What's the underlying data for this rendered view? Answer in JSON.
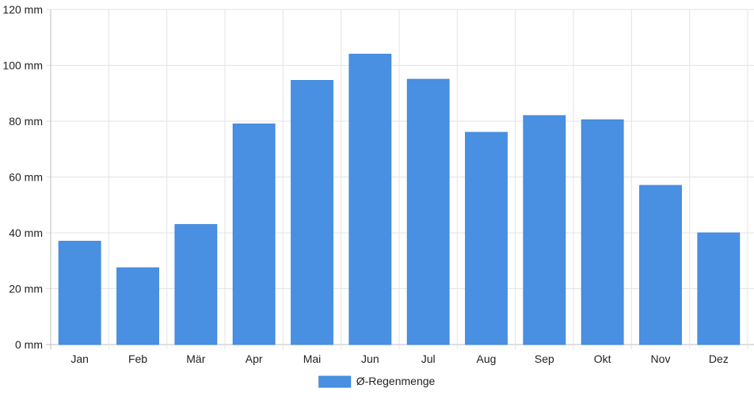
{
  "chart_data": {
    "type": "bar",
    "title": "",
    "xlabel": "",
    "ylabel": "",
    "categories": [
      "Jan",
      "Feb",
      "Mär",
      "Apr",
      "Mai",
      "Jun",
      "Jul",
      "Aug",
      "Sep",
      "Okt",
      "Nov",
      "Dez"
    ],
    "series": [
      {
        "name": "Ø-Regenmenge",
        "color": "#4a90e2",
        "values": [
          37,
          27.5,
          43,
          79,
          94.6,
          104,
          95,
          76,
          82,
          80.5,
          57,
          40
        ]
      }
    ],
    "ylim": [
      0,
      120
    ],
    "yticks": [
      0,
      20,
      40,
      60,
      80,
      100,
      120
    ],
    "ytick_labels": [
      "0 mm",
      "20 mm",
      "40 mm",
      "60 mm",
      "80 mm",
      "100 mm",
      "120 mm"
    ],
    "grid": true,
    "legend": "bottom-center"
  }
}
